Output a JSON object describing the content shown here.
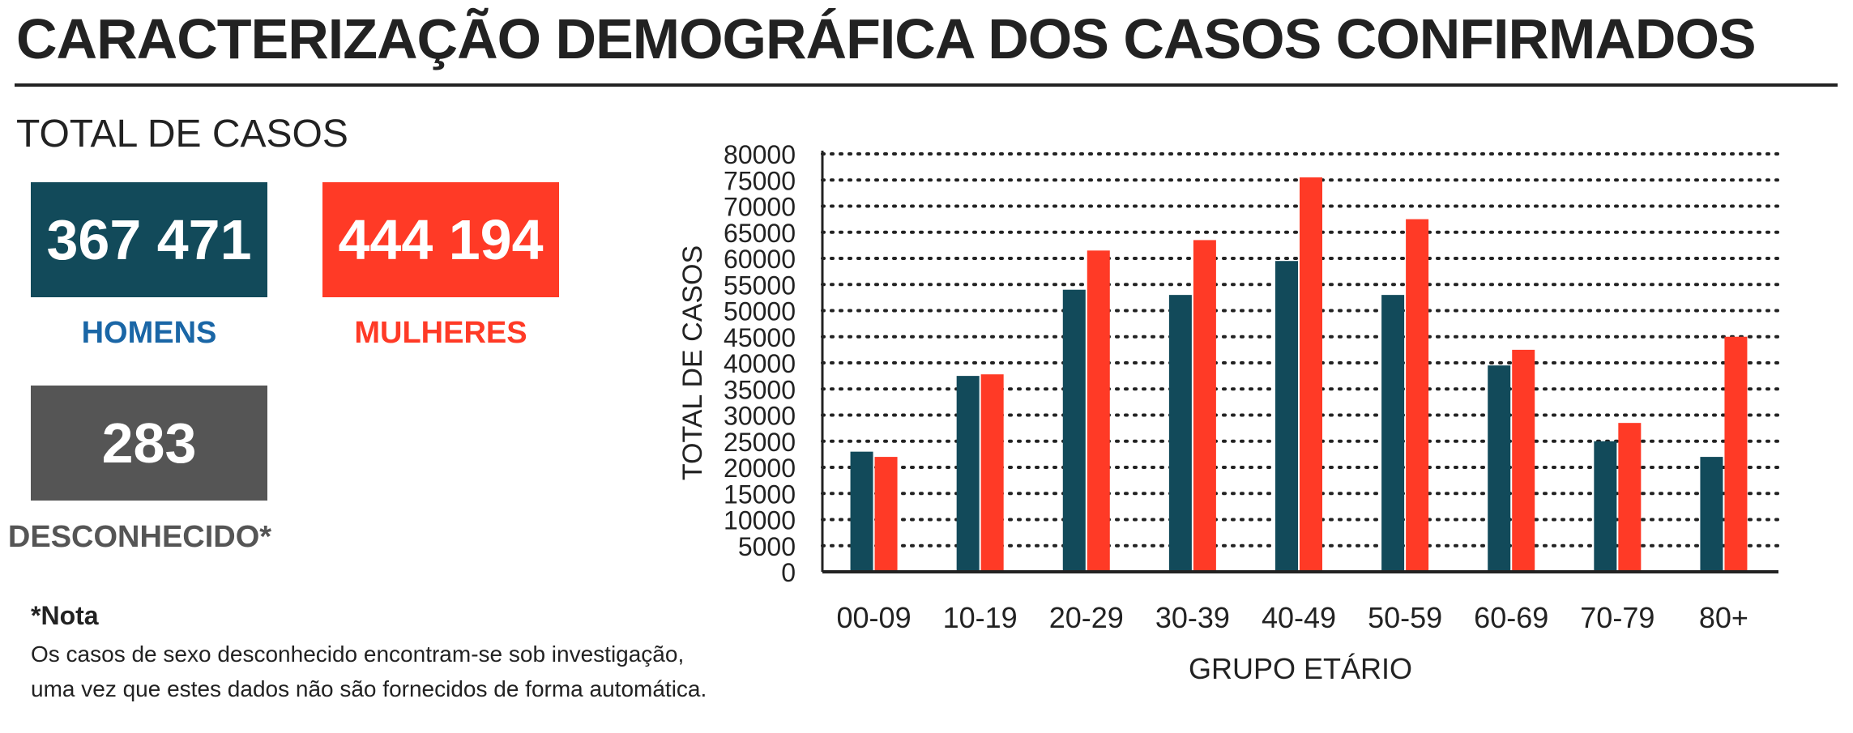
{
  "title": "CARACTERIZAÇÃO DEMOGRÁFICA DOS CASOS CONFIRMADOS",
  "totals": {
    "heading": "TOTAL DE CASOS",
    "men": {
      "value": "367 471",
      "label": "HOMENS",
      "color": "#124a5a",
      "label_color": "#1a66a6"
    },
    "women": {
      "value": "444 194",
      "label": "MULHERES",
      "color": "#ff3a26",
      "label_color": "#ff3a26"
    },
    "unknown": {
      "value": "283",
      "label": "DESCONHECIDO*",
      "color": "#555555",
      "label_color": "#555555"
    }
  },
  "note": {
    "title": "*Nota",
    "lines": [
      "Os casos de sexo desconhecido encontram-se sob investigação,",
      "uma vez que estes dados não são fornecidos de forma automática."
    ]
  },
  "chart_data": {
    "type": "bar",
    "categories": [
      "00-09",
      "10-19",
      "20-29",
      "30-39",
      "40-49",
      "50-59",
      "60-69",
      "70-79",
      "80+"
    ],
    "series": [
      {
        "name": "HOMENS",
        "color": "#124a5a",
        "values": [
          23000,
          37500,
          54000,
          53000,
          59500,
          53000,
          39500,
          25000,
          22000
        ]
      },
      {
        "name": "MULHERES",
        "color": "#ff3a26",
        "values": [
          22000,
          37800,
          61500,
          63500,
          75500,
          67500,
          42500,
          28500,
          45000
        ]
      }
    ],
    "xlabel": "GRUPO ETÁRIO",
    "ylabel": "TOTAL DE CASOS",
    "ylim": [
      0,
      80000
    ],
    "yticks": [
      "0",
      "5000",
      "10000",
      "15000",
      "20000",
      "25000",
      "30000",
      "35000",
      "40000",
      "45000",
      "50000",
      "55000",
      "60000",
      "65000",
      "70000",
      "75000",
      "80000"
    ],
    "grid": "horizontal dotted",
    "legend": "none"
  }
}
